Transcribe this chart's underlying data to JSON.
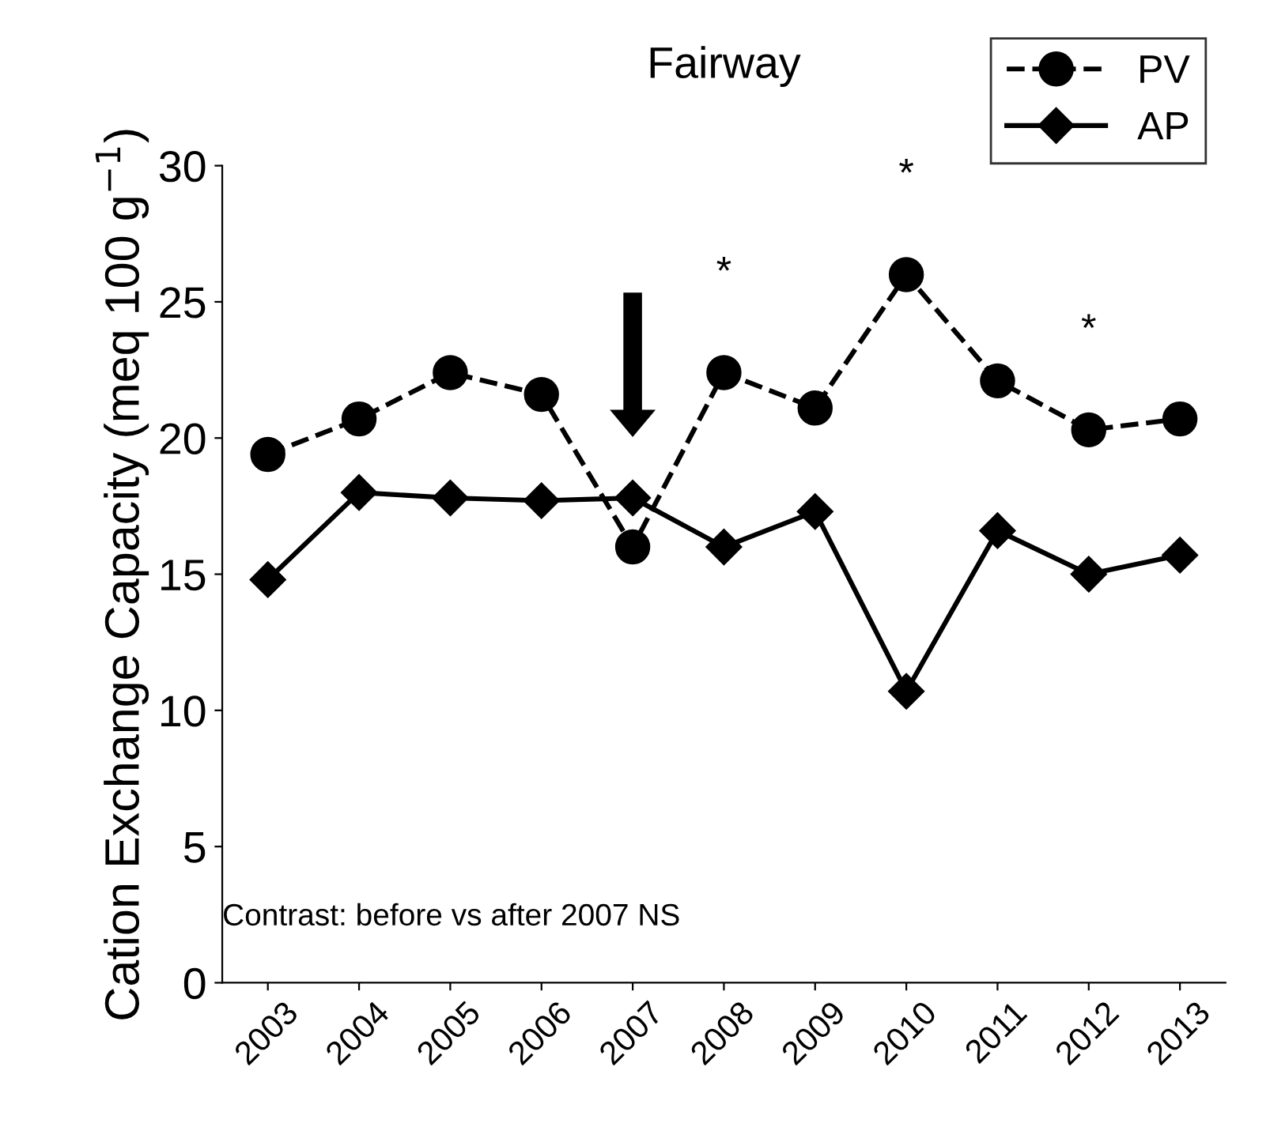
{
  "chart_data": {
    "type": "line",
    "title": "Fairway",
    "ylabel": "Cation Exchange Capacity (meq 100 g$^{−1}$)",
    "categories": [
      "2003",
      "2004",
      "2005",
      "2006",
      "2007",
      "2008",
      "2009",
      "2010",
      "2011",
      "2012",
      "2013"
    ],
    "series": [
      {
        "name": "PV",
        "color": "#000000",
        "marker": "circle",
        "line_style": "dashed",
        "values": [
          19.4,
          20.7,
          22.4,
          21.6,
          16.0,
          22.4,
          21.1,
          26.0,
          22.1,
          20.3,
          20.7
        ]
      },
      {
        "name": "AP",
        "color": "#000000",
        "marker": "diamond",
        "line_style": "solid",
        "values": [
          14.8,
          18.0,
          17.8,
          17.7,
          17.8,
          16.0,
          17.3,
          10.7,
          16.6,
          15.0,
          15.7
        ]
      }
    ],
    "ylim": [
      0,
      30
    ],
    "yticks": [
      0,
      5,
      10,
      15,
      20,
      25,
      30
    ],
    "grid": false,
    "legend": "top right",
    "annotations": [
      {
        "text": "*",
        "x": "2008",
        "y": 22.4
      },
      {
        "text": "*",
        "x": "2010",
        "y": 26.0
      },
      {
        "text": "*",
        "x": "2012",
        "y": 20.3
      },
      "Contrast: before vs after 2007 NS"
    ]
  }
}
